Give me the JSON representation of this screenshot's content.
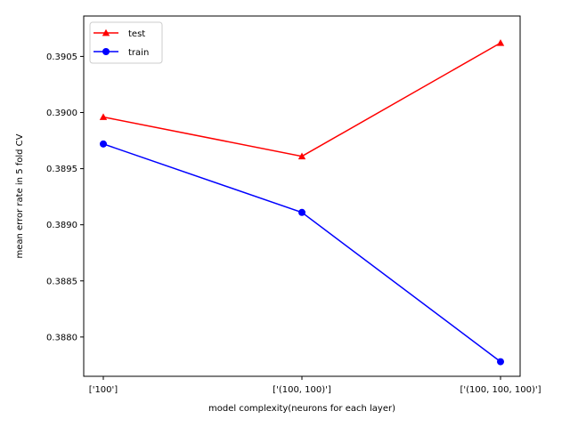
{
  "chart_data": {
    "type": "line",
    "title": "",
    "xlabel": "model complexity(neurons for each layer)",
    "ylabel": "mean error rate in 5 fold CV",
    "categories": [
      "['100']",
      "['(100, 100)']",
      "['(100, 100, 100)']"
    ],
    "ylim": [
      0.38765,
      0.39086
    ],
    "yticks": [
      0.388,
      0.3885,
      0.389,
      0.3895,
      0.39,
      0.3905
    ],
    "ytick_labels": [
      "0.3880",
      "0.3885",
      "0.3890",
      "0.3895",
      "0.3900",
      "0.3905"
    ],
    "grid": false,
    "legend_position": "top-left",
    "series": [
      {
        "name": "test",
        "color": "#ff0000",
        "marker": "triangle",
        "values": [
          0.38996,
          0.38961,
          0.39062
        ]
      },
      {
        "name": "train",
        "color": "#0000ff",
        "marker": "circle",
        "values": [
          0.38972,
          0.38911,
          0.38778
        ]
      }
    ]
  }
}
